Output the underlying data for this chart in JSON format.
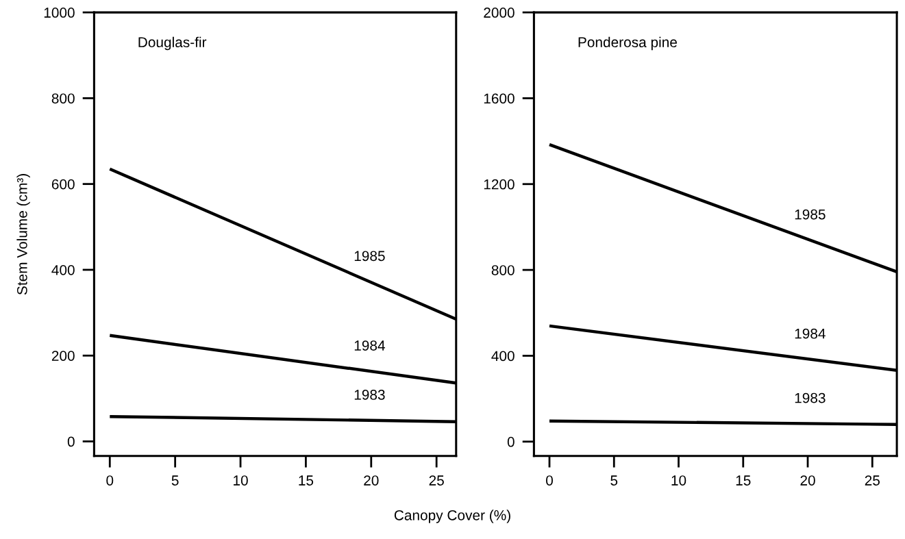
{
  "chart_data": [
    {
      "type": "line",
      "ylabel": "Stem Volume (cm³)",
      "xlabel": "Canopy Cover (%)",
      "annotations": [
        "Douglas-fir"
      ],
      "xlim": [
        -1.2,
        26.5
      ],
      "xticks": [
        0,
        5,
        10,
        15,
        20,
        25
      ],
      "ylim": [
        -34,
        1000
      ],
      "yticks": [
        0,
        200,
        400,
        600,
        800,
        1000
      ],
      "grid": false,
      "legend": false,
      "series": [
        {
          "name": "1985",
          "color": "#000000",
          "x": [
            0,
            26.5
          ],
          "values": [
            635,
            285
          ]
        },
        {
          "name": "1984",
          "color": "#000000",
          "x": [
            0,
            26.5
          ],
          "values": [
            247,
            136
          ]
        },
        {
          "name": "1983",
          "color": "#000000",
          "x": [
            0,
            26.5
          ],
          "values": [
            58,
            46
          ]
        }
      ]
    },
    {
      "type": "line",
      "annotations": [
        "Ponderosa pine"
      ],
      "xlim": [
        -1.2,
        26.9
      ],
      "xticks": [
        0,
        5,
        10,
        15,
        20,
        25
      ],
      "ylim": [
        -67,
        2000
      ],
      "yticks": [
        0,
        400,
        800,
        1200,
        1600,
        2000
      ],
      "grid": false,
      "legend": false,
      "series": [
        {
          "name": "1985",
          "color": "#000000",
          "x": [
            0,
            26.9
          ],
          "values": [
            1384,
            791
          ]
        },
        {
          "name": "1984",
          "color": "#000000",
          "x": [
            0,
            26.9
          ],
          "values": [
            539,
            332
          ]
        },
        {
          "name": "1983",
          "color": "#000000",
          "x": [
            0,
            26.9
          ],
          "values": [
            96,
            80
          ]
        }
      ]
    }
  ]
}
